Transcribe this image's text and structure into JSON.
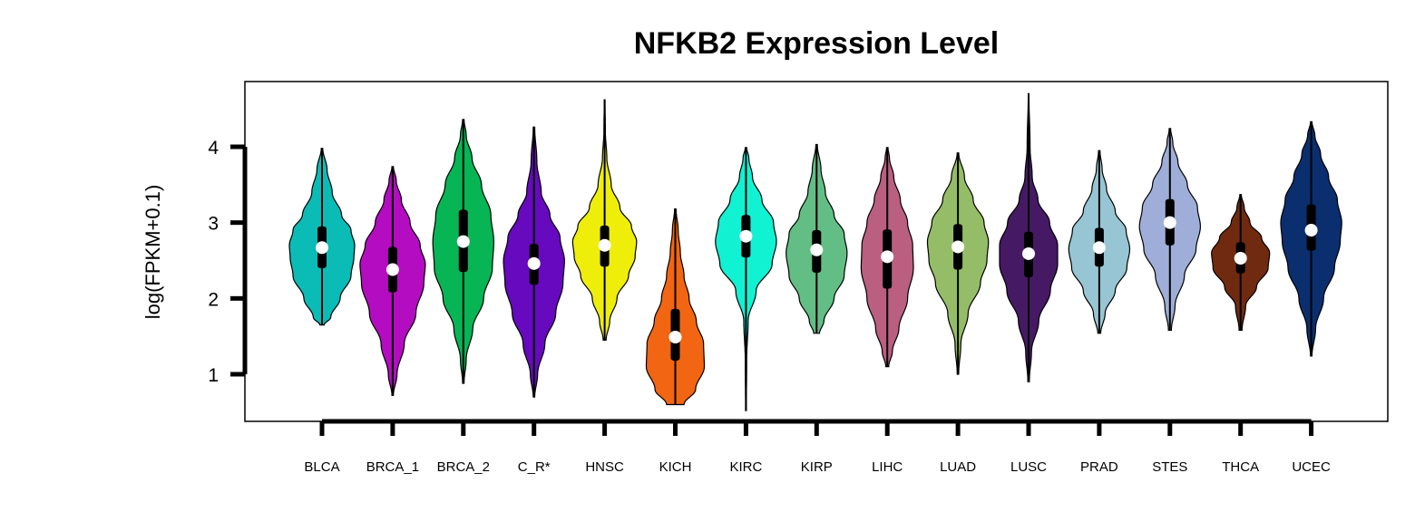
{
  "chart_data": {
    "type": "violin",
    "title": "NFKB2 Expression Level",
    "xlabel": "",
    "ylabel": "log(FPKM+0.1)",
    "ylim": [
      0.4,
      4.85
    ],
    "yticks": [
      1,
      2,
      3,
      4
    ],
    "categories": [
      "BLCA",
      "BRCA_1",
      "BRCA_2",
      "C_R*",
      "HNSC",
      "KICH",
      "KIRC",
      "KIRP",
      "LIHC",
      "LUAD",
      "LUSC",
      "PRAD",
      "STES",
      "THCA",
      "UCEC"
    ],
    "series": [
      {
        "category": "BLCA",
        "color": "#0BBBB6",
        "min": 1.65,
        "max": 3.98,
        "q1": 2.4,
        "median": 2.67,
        "q3": 2.95,
        "shape": [
          [
            1.65,
            0.03
          ],
          [
            1.75,
            0.12
          ],
          [
            2.0,
            0.25
          ],
          [
            2.3,
            0.4
          ],
          [
            2.55,
            0.44
          ],
          [
            2.7,
            0.45
          ],
          [
            2.9,
            0.4
          ],
          [
            3.1,
            0.27
          ],
          [
            3.4,
            0.14
          ],
          [
            3.7,
            0.07
          ],
          [
            3.98,
            0.01
          ]
        ]
      },
      {
        "category": "BRCA_1",
        "color": "#B40CC0",
        "min": 0.72,
        "max": 3.74,
        "q1": 2.08,
        "median": 2.38,
        "q3": 2.68,
        "shape": [
          [
            0.72,
            0.01
          ],
          [
            1.0,
            0.06
          ],
          [
            1.4,
            0.16
          ],
          [
            1.8,
            0.32
          ],
          [
            2.2,
            0.43
          ],
          [
            2.45,
            0.45
          ],
          [
            2.7,
            0.38
          ],
          [
            3.0,
            0.24
          ],
          [
            3.3,
            0.12
          ],
          [
            3.55,
            0.05
          ],
          [
            3.74,
            0.01
          ]
        ]
      },
      {
        "category": "BRCA_2",
        "color": "#07B554",
        "min": 0.88,
        "max": 4.36,
        "q1": 2.35,
        "median": 2.75,
        "q3": 3.17,
        "shape": [
          [
            0.88,
            0.01
          ],
          [
            1.2,
            0.04
          ],
          [
            1.6,
            0.13
          ],
          [
            2.0,
            0.28
          ],
          [
            2.4,
            0.4
          ],
          [
            2.75,
            0.42
          ],
          [
            3.1,
            0.38
          ],
          [
            3.5,
            0.25
          ],
          [
            3.85,
            0.12
          ],
          [
            4.15,
            0.04
          ],
          [
            4.36,
            0.01
          ]
        ]
      },
      {
        "category": "C_R*",
        "color": "#6709BE",
        "min": 0.7,
        "max": 4.26,
        "q1": 2.18,
        "median": 2.46,
        "q3": 2.72,
        "shape": [
          [
            0.7,
            0.01
          ],
          [
            1.0,
            0.05
          ],
          [
            1.4,
            0.15
          ],
          [
            1.8,
            0.3
          ],
          [
            2.2,
            0.4
          ],
          [
            2.5,
            0.42
          ],
          [
            2.8,
            0.36
          ],
          [
            3.1,
            0.22
          ],
          [
            3.4,
            0.1
          ],
          [
            3.8,
            0.04
          ],
          [
            4.26,
            0.01
          ]
        ]
      },
      {
        "category": "HNSC",
        "color": "#EEEE0A",
        "min": 1.45,
        "max": 4.62,
        "q1": 2.42,
        "median": 2.7,
        "q3": 2.96,
        "shape": [
          [
            1.45,
            0.02
          ],
          [
            1.7,
            0.07
          ],
          [
            2.0,
            0.17
          ],
          [
            2.3,
            0.33
          ],
          [
            2.55,
            0.42
          ],
          [
            2.75,
            0.44
          ],
          [
            2.95,
            0.37
          ],
          [
            3.2,
            0.21
          ],
          [
            3.5,
            0.09
          ],
          [
            3.85,
            0.03
          ],
          [
            4.2,
            0.01
          ],
          [
            4.62,
            0.005
          ]
        ]
      },
      {
        "category": "KICH",
        "color": "#F26512",
        "min": 0.6,
        "max": 3.18,
        "q1": 1.18,
        "median": 1.49,
        "q3": 1.86,
        "shape": [
          [
            0.6,
            0.12
          ],
          [
            0.8,
            0.28
          ],
          [
            1.1,
            0.4
          ],
          [
            1.4,
            0.39
          ],
          [
            1.7,
            0.29
          ],
          [
            2.0,
            0.19
          ],
          [
            2.3,
            0.12
          ],
          [
            2.6,
            0.07
          ],
          [
            2.9,
            0.04
          ],
          [
            3.18,
            0.01
          ]
        ]
      },
      {
        "category": "KIRC",
        "color": "#11F2D3",
        "min": 0.52,
        "max": 3.99,
        "q1": 2.54,
        "median": 2.82,
        "q3": 3.1,
        "shape": [
          [
            0.52,
            0.005
          ],
          [
            1.2,
            0.01
          ],
          [
            1.7,
            0.03
          ],
          [
            2.1,
            0.14
          ],
          [
            2.45,
            0.36
          ],
          [
            2.75,
            0.42
          ],
          [
            3.0,
            0.38
          ],
          [
            3.3,
            0.22
          ],
          [
            3.6,
            0.09
          ],
          [
            3.85,
            0.04
          ],
          [
            3.99,
            0.01
          ]
        ]
      },
      {
        "category": "KIRP",
        "color": "#62BE84",
        "min": 1.54,
        "max": 4.03,
        "q1": 2.34,
        "median": 2.64,
        "q3": 2.9,
        "shape": [
          [
            1.54,
            0.04
          ],
          [
            1.7,
            0.1
          ],
          [
            2.0,
            0.24
          ],
          [
            2.3,
            0.38
          ],
          [
            2.6,
            0.42
          ],
          [
            2.85,
            0.38
          ],
          [
            3.1,
            0.24
          ],
          [
            3.4,
            0.12
          ],
          [
            3.7,
            0.06
          ],
          [
            4.03,
            0.01
          ]
        ]
      },
      {
        "category": "LIHC",
        "color": "#BA5F80",
        "min": 1.1,
        "max": 3.99,
        "q1": 2.13,
        "median": 2.55,
        "q3": 2.91,
        "shape": [
          [
            1.1,
            0.02
          ],
          [
            1.3,
            0.07
          ],
          [
            1.6,
            0.16
          ],
          [
            2.0,
            0.28
          ],
          [
            2.4,
            0.36
          ],
          [
            2.7,
            0.35
          ],
          [
            3.0,
            0.28
          ],
          [
            3.3,
            0.18
          ],
          [
            3.6,
            0.09
          ],
          [
            3.85,
            0.03
          ],
          [
            3.99,
            0.01
          ]
        ]
      },
      {
        "category": "LUAD",
        "color": "#95BD67",
        "min": 1.0,
        "max": 3.92,
        "q1": 2.38,
        "median": 2.68,
        "q3": 2.98,
        "shape": [
          [
            1.0,
            0.01
          ],
          [
            1.4,
            0.04
          ],
          [
            1.8,
            0.14
          ],
          [
            2.2,
            0.31
          ],
          [
            2.5,
            0.4
          ],
          [
            2.75,
            0.42
          ],
          [
            3.0,
            0.36
          ],
          [
            3.3,
            0.21
          ],
          [
            3.6,
            0.09
          ],
          [
            3.92,
            0.01
          ]
        ]
      },
      {
        "category": "LUSC",
        "color": "#451964",
        "min": 0.9,
        "max": 4.7,
        "q1": 2.28,
        "median": 2.59,
        "q3": 2.88,
        "shape": [
          [
            0.9,
            0.01
          ],
          [
            1.3,
            0.04
          ],
          [
            1.7,
            0.14
          ],
          [
            2.1,
            0.3
          ],
          [
            2.45,
            0.4
          ],
          [
            2.7,
            0.4
          ],
          [
            3.0,
            0.29
          ],
          [
            3.3,
            0.13
          ],
          [
            3.6,
            0.05
          ],
          [
            4.0,
            0.02
          ],
          [
            4.7,
            0.005
          ]
        ]
      },
      {
        "category": "PRAD",
        "color": "#97C5D3",
        "min": 1.54,
        "max": 3.95,
        "q1": 2.42,
        "median": 2.67,
        "q3": 2.93,
        "shape": [
          [
            1.54,
            0.02
          ],
          [
            1.8,
            0.08
          ],
          [
            2.1,
            0.22
          ],
          [
            2.4,
            0.38
          ],
          [
            2.65,
            0.42
          ],
          [
            2.9,
            0.37
          ],
          [
            3.15,
            0.22
          ],
          [
            3.45,
            0.1
          ],
          [
            3.7,
            0.04
          ],
          [
            3.95,
            0.01
          ]
        ]
      },
      {
        "category": "STES",
        "color": "#9EAED8",
        "min": 1.58,
        "max": 4.24,
        "q1": 2.7,
        "median": 3.0,
        "q3": 3.31,
        "shape": [
          [
            1.58,
            0.02
          ],
          [
            1.9,
            0.07
          ],
          [
            2.3,
            0.2
          ],
          [
            2.65,
            0.36
          ],
          [
            2.95,
            0.42
          ],
          [
            3.2,
            0.38
          ],
          [
            3.5,
            0.24
          ],
          [
            3.8,
            0.11
          ],
          [
            4.05,
            0.04
          ],
          [
            4.24,
            0.01
          ]
        ]
      },
      {
        "category": "THCA",
        "color": "#6F2A10",
        "min": 1.58,
        "max": 3.37,
        "q1": 2.33,
        "median": 2.53,
        "q3": 2.74,
        "shape": [
          [
            1.58,
            0.02
          ],
          [
            1.9,
            0.07
          ],
          [
            2.15,
            0.22
          ],
          [
            2.4,
            0.38
          ],
          [
            2.6,
            0.4
          ],
          [
            2.8,
            0.29
          ],
          [
            3.0,
            0.13
          ],
          [
            3.2,
            0.05
          ],
          [
            3.37,
            0.01
          ]
        ]
      },
      {
        "category": "UCEC",
        "color": "#0B2E6F",
        "min": 1.24,
        "max": 4.33,
        "q1": 2.63,
        "median": 2.9,
        "q3": 3.24,
        "shape": [
          [
            1.24,
            0.01
          ],
          [
            1.6,
            0.06
          ],
          [
            2.0,
            0.17
          ],
          [
            2.4,
            0.32
          ],
          [
            2.75,
            0.4
          ],
          [
            3.0,
            0.42
          ],
          [
            3.3,
            0.36
          ],
          [
            3.6,
            0.24
          ],
          [
            3.9,
            0.13
          ],
          [
            4.15,
            0.05
          ],
          [
            4.33,
            0.01
          ]
        ]
      }
    ]
  }
}
